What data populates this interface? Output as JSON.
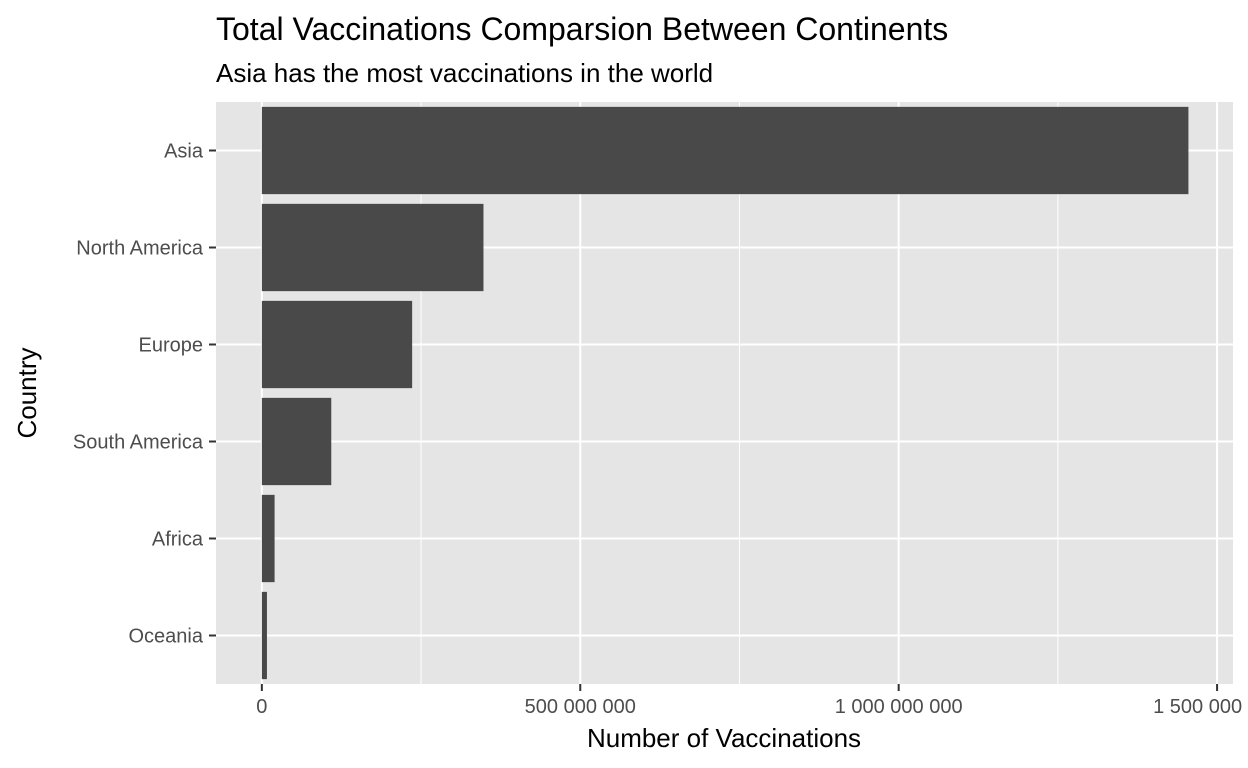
{
  "chart_data": {
    "type": "bar",
    "orientation": "horizontal",
    "title": "Total Vaccinations Comparsion Between Continents",
    "subtitle": "Asia has the most vaccinations in the world",
    "xlabel": "Number of Vaccinations",
    "ylabel": "Country",
    "categories": [
      "Asia",
      "North America",
      "Europe",
      "South America",
      "Africa",
      "Oceania"
    ],
    "values": [
      1455000000,
      348000000,
      236000000,
      109000000,
      20000000,
      8000000
    ],
    "xlim": [
      -72000000,
      1525000000
    ],
    "x_ticks": [
      {
        "value": 0,
        "label": "0"
      },
      {
        "value": 500000000,
        "label": "500 000 000"
      },
      {
        "value": 1000000000,
        "label": "1 000 000 000"
      },
      {
        "value": 1500000000,
        "label": "1 500 000 000"
      }
    ],
    "x_minor_ticks": [
      250000000,
      750000000,
      1250000000
    ],
    "grid": true,
    "legend": "none",
    "colors": {
      "bar": "#494949",
      "panel": "#e5e5e5",
      "grid": "#ffffff",
      "tick_text": "#4d4d4d",
      "tick_mark": "#333333"
    }
  }
}
